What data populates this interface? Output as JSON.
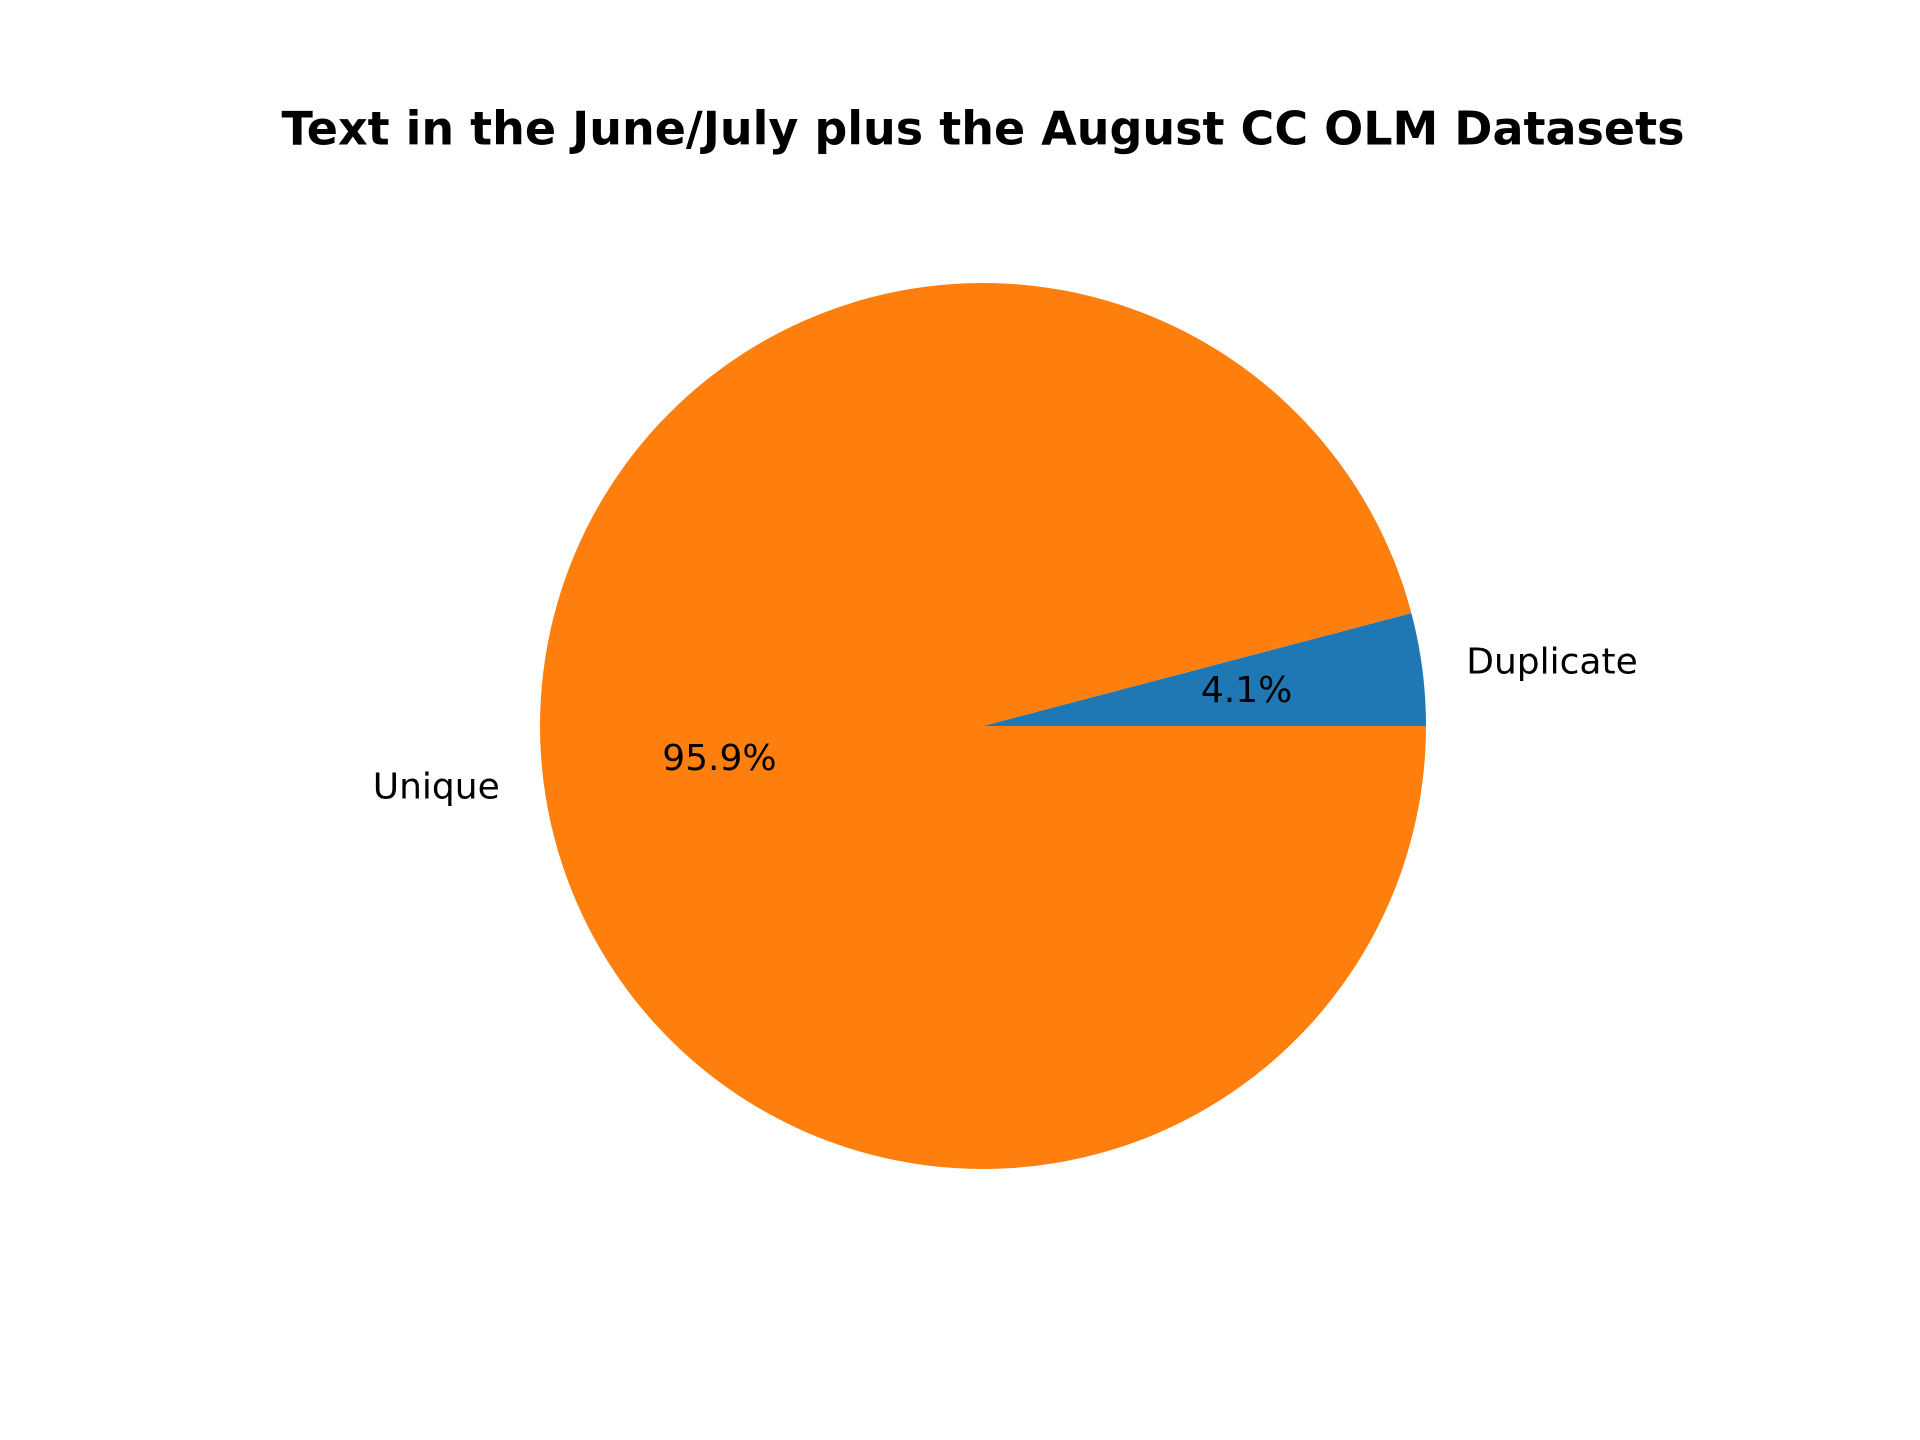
{
  "chart_data": {
    "type": "pie",
    "title": "Text in the June/July plus the August CC OLM Datasets",
    "categories": [
      "Duplicate",
      "Unique"
    ],
    "values": [
      4.1,
      95.9
    ],
    "value_labels": [
      "4.1%",
      "95.9%"
    ],
    "colors": [
      "#1f77b4",
      "#ff7f0e"
    ]
  }
}
